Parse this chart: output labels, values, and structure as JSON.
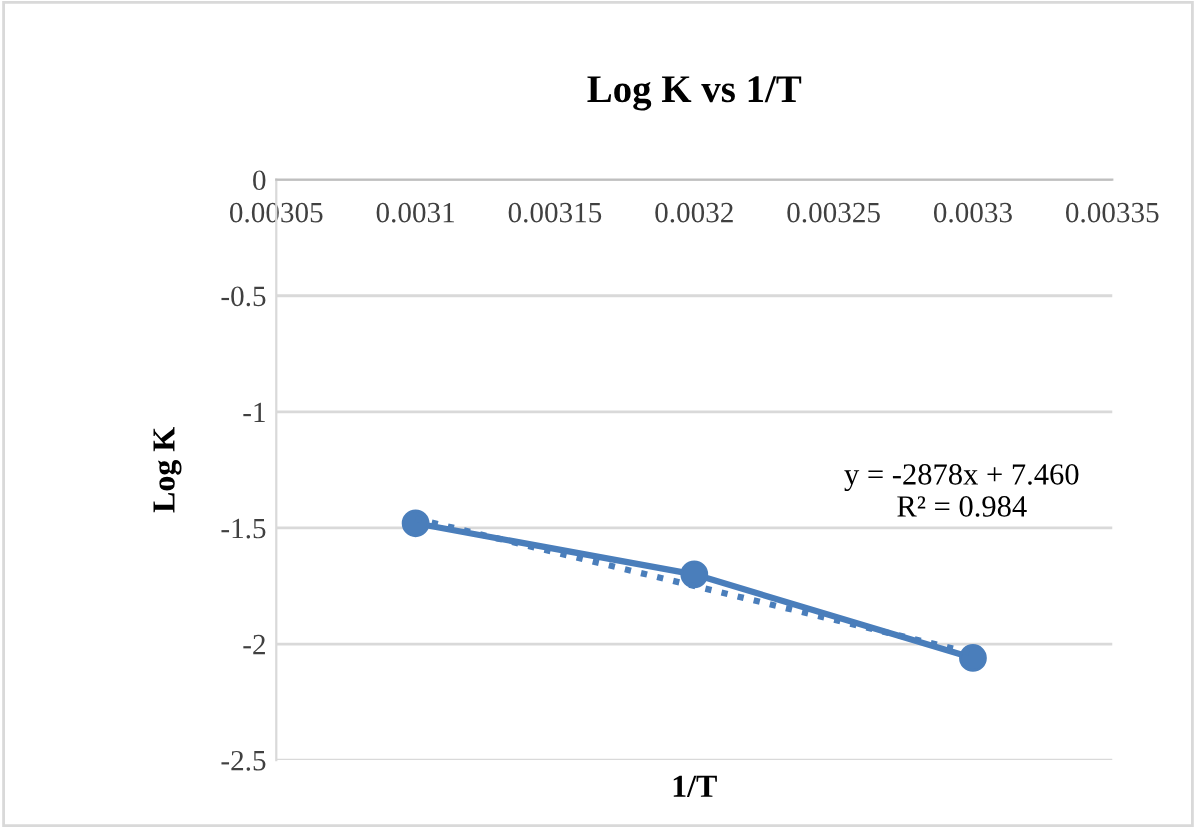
{
  "chart_data": {
    "type": "line",
    "title": "Log K vs 1/T",
    "xlabel": "1/T",
    "ylabel": "Log K",
    "xlim": [
      0.00305,
      0.00335
    ],
    "xticks": [
      0.00305,
      0.0031,
      0.00315,
      0.0032,
      0.00325,
      0.0033,
      0.00335
    ],
    "ylim": [
      -2.5,
      0
    ],
    "yticks": [
      0,
      -0.5,
      -1,
      -1.5,
      -2,
      -2.5
    ],
    "grid": "y",
    "legend": false,
    "series": [
      {
        "color": "#4a7ebb",
        "x": [
          0.0031,
          0.0032,
          0.0033
        ],
        "values": [
          -1.48,
          -1.7,
          -2.06
        ],
        "marker": "circle",
        "line_style": "solid"
      },
      {
        "color": "#4a7ebb",
        "x": [
          0.0031,
          0.0033
        ],
        "values": [
          -1.46,
          -2.04
        ],
        "marker": "none",
        "line_style": "dotted"
      }
    ],
    "annotations": [
      "y = -2878x + 7.460\nR² = 0.984"
    ]
  }
}
